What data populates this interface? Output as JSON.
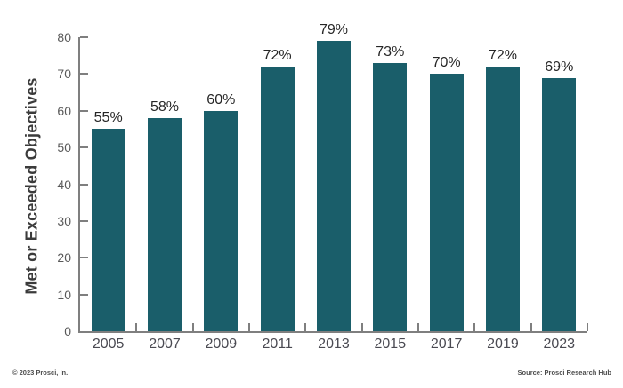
{
  "chart_data": {
    "type": "bar",
    "title": "",
    "categories": [
      "2005",
      "2007",
      "2009",
      "2011",
      "2013",
      "2015",
      "2017",
      "2019",
      "2023"
    ],
    "values": [
      55,
      58,
      60,
      72,
      79,
      73,
      70,
      72,
      69
    ],
    "value_labels": [
      "55%",
      "58%",
      "60%",
      "72%",
      "79%",
      "73%",
      "70%",
      "72%",
      "69%"
    ],
    "xlabel": "",
    "ylabel": "Met or Exceeded Objectives",
    "ylim": [
      0,
      80
    ],
    "yticks": [
      0,
      10,
      20,
      30,
      40,
      50,
      60,
      70,
      80
    ],
    "grid": false,
    "legend": "none",
    "bar_color": "#1A5E6A",
    "axis_color": "#7F7F7F"
  },
  "footer": {
    "copyright": "© 2023 Prosci, In.",
    "source": "Source: Prosci Research Hub"
  }
}
